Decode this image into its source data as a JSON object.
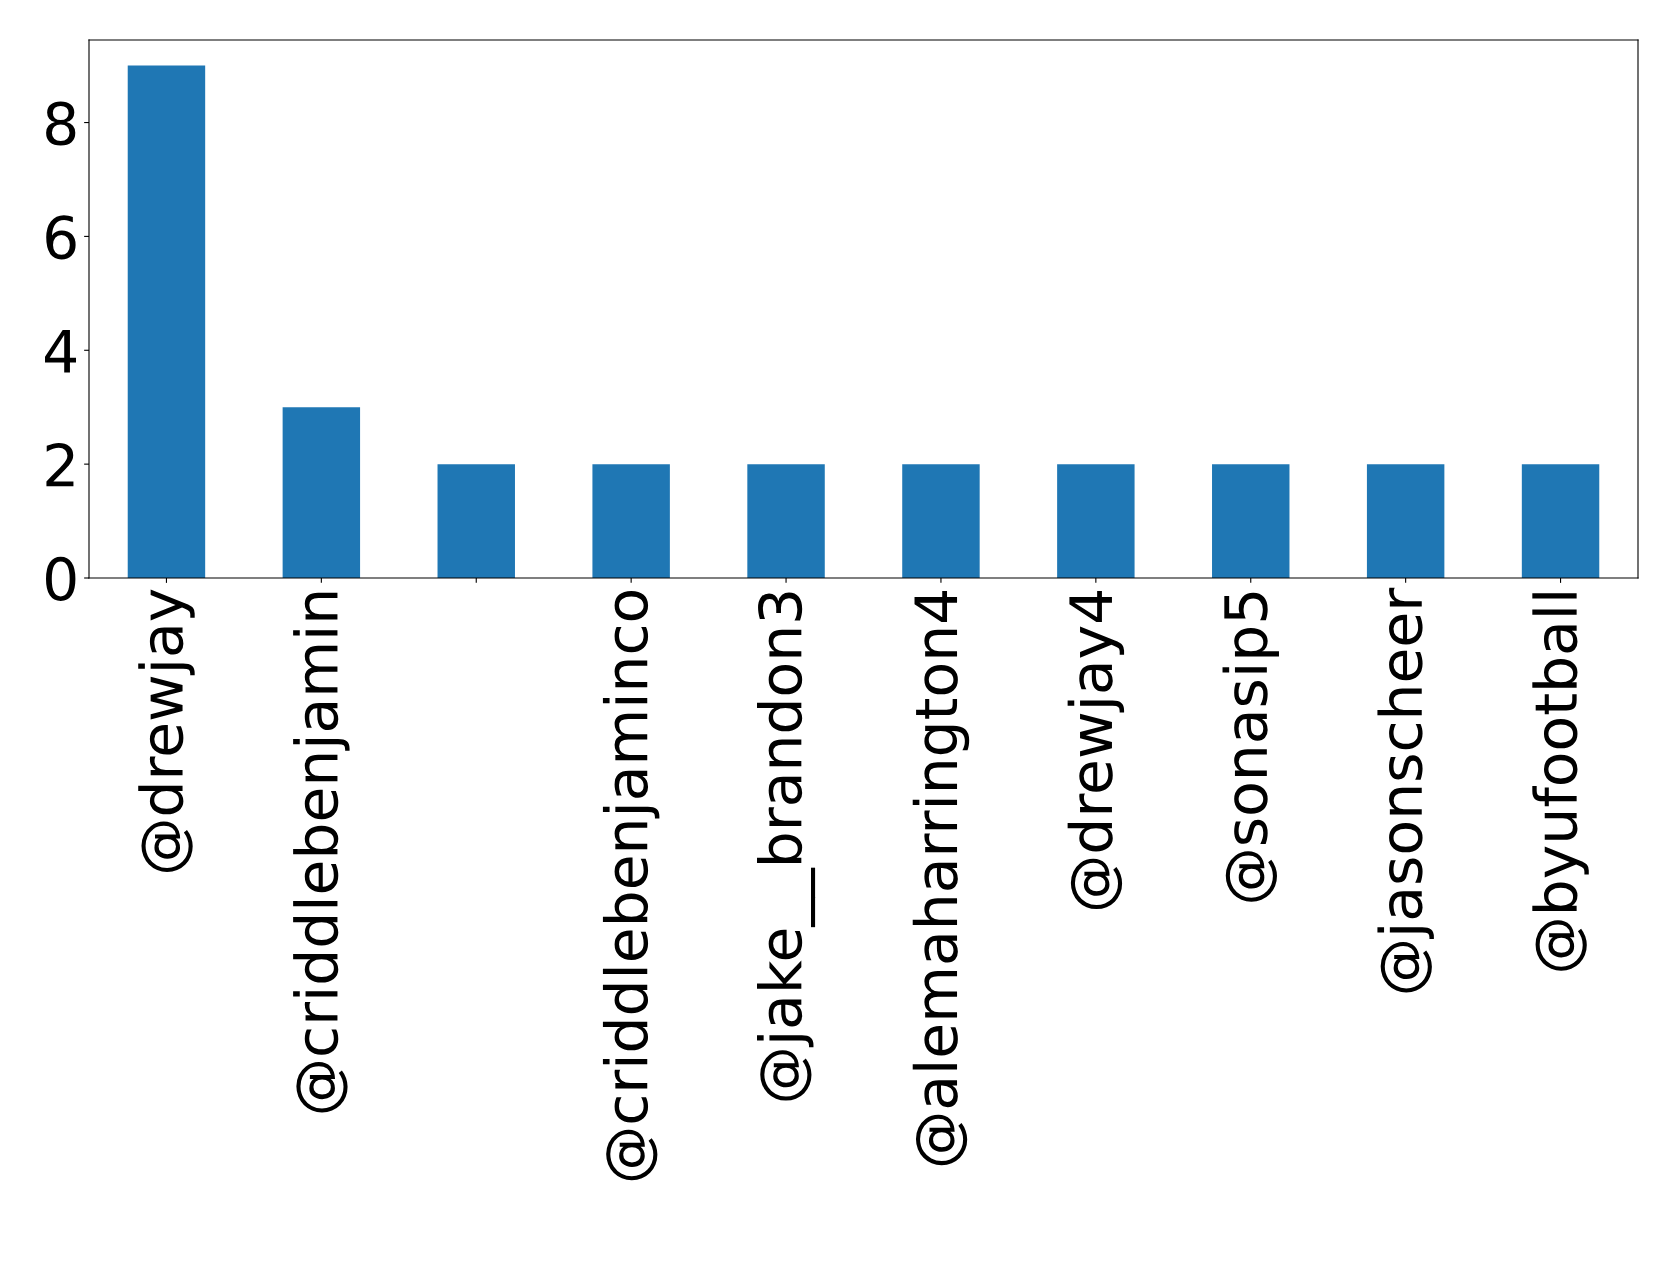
{
  "chart_data": {
    "type": "bar",
    "categories": [
      "@drewjay",
      "@criddlebenjamin",
      null,
      "@criddlebenjaminco",
      "@jake__brandon3",
      "@alemaharrington4",
      "@drewjay4",
      "@sonasip5",
      "@jasonscheer",
      "@byufootball"
    ],
    "values": [
      9,
      3,
      2,
      2,
      2,
      2,
      2,
      2,
      2,
      2
    ],
    "color": "#1f77b4",
    "ylim": [
      0,
      9.45
    ],
    "yticks": [
      0,
      2,
      4,
      6,
      8
    ],
    "grid": false,
    "legend": false
  }
}
